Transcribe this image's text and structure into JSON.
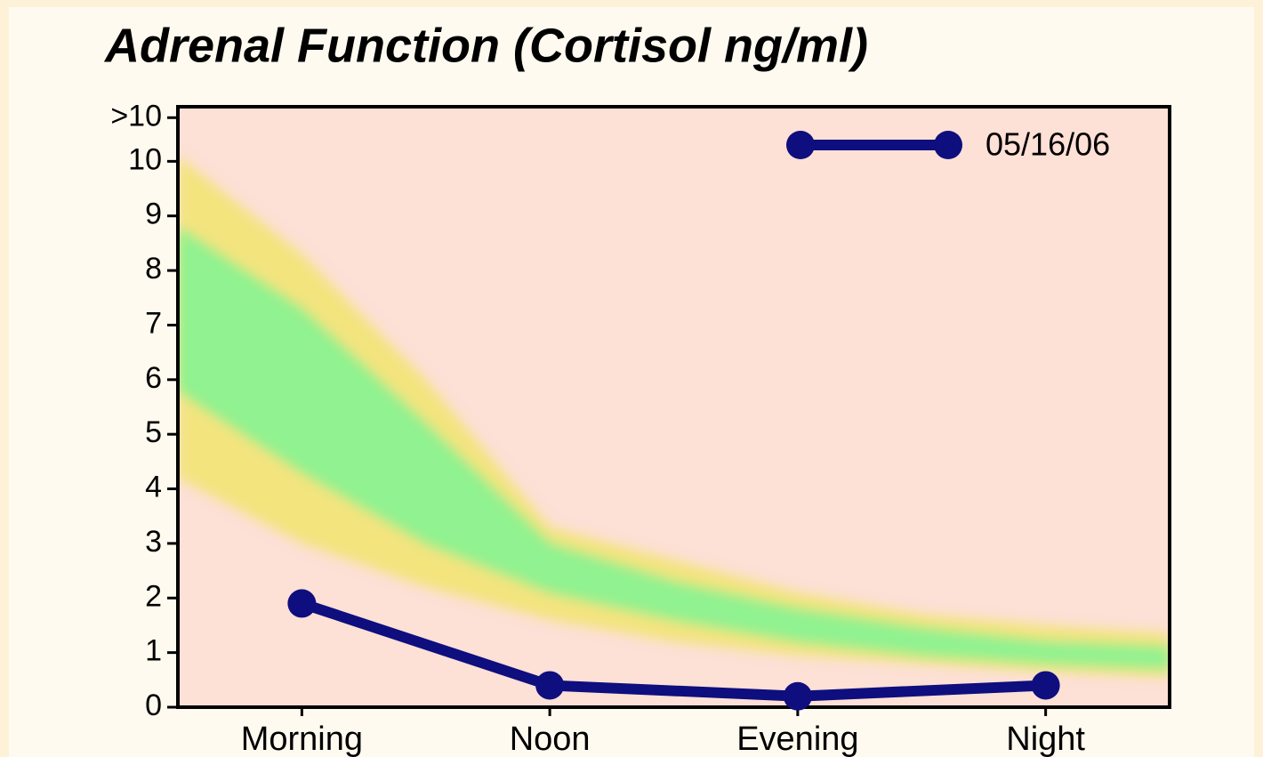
{
  "chart_data": {
    "type": "line",
    "title": "Adrenal Function (Cortisol ng/ml)",
    "categories": [
      "Morning",
      "Noon",
      "Evening",
      "Night"
    ],
    "series": [
      {
        "name": "05/16/06",
        "color": "#0e0e7e",
        "values": [
          1.9,
          0.4,
          0.2,
          0.4
        ]
      }
    ],
    "ylim": [
      0,
      11
    ],
    "yticks": [
      0,
      1,
      2,
      3,
      4,
      5,
      6,
      7,
      8,
      9,
      10,
      {
        "value": 10.8,
        "label": ">10"
      }
    ],
    "legend": "top-right",
    "plot_background": "#fde0d6",
    "band_x": [
      -0.5,
      0,
      0.5,
      1,
      1.5,
      2,
      2.5,
      3,
      3.5
    ],
    "bands": [
      {
        "color": "#f3e47e",
        "upper": [
          10.1,
          8.3,
          6.0,
          3.3,
          2.7,
          2.1,
          1.7,
          1.5,
          1.35
        ],
        "lower": [
          4.2,
          3.0,
          2.2,
          1.6,
          1.2,
          0.95,
          0.8,
          0.65,
          0.55
        ]
      },
      {
        "color": "#90f290",
        "upper": [
          8.8,
          7.3,
          5.2,
          3.0,
          2.3,
          1.8,
          1.45,
          1.2,
          1.1
        ],
        "lower": [
          5.8,
          4.3,
          3.0,
          2.1,
          1.6,
          1.2,
          0.95,
          0.8,
          0.7
        ]
      }
    ]
  }
}
